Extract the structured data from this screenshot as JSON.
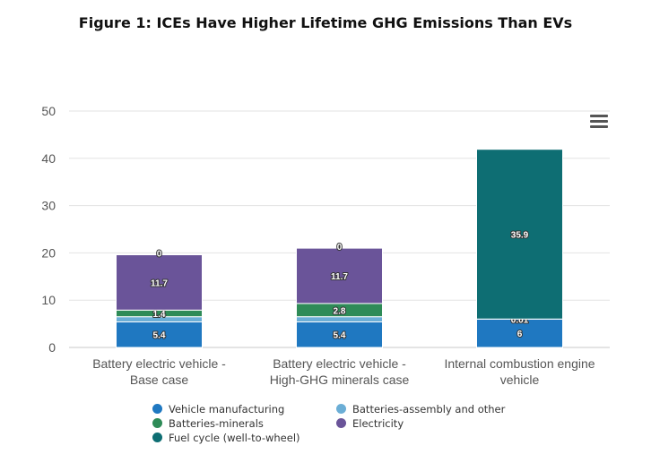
{
  "chart_data": {
    "type": "bar",
    "stacked": true,
    "title": "Figure 1: ICEs Have Higher Lifetime GHG Emissions Than EVs",
    "categories": [
      [
        "Battery electric vehicle -",
        "Base case"
      ],
      [
        "Battery electric vehicle -",
        "High-GHG minerals case"
      ],
      [
        "Internal combustion engine",
        "vehicle"
      ]
    ],
    "ylim": [
      0,
      50
    ],
    "yticks": [
      0,
      10,
      20,
      30,
      40,
      50
    ],
    "grid": true,
    "legend_position": "bottom",
    "series": [
      {
        "name": "Vehicle manufacturing",
        "color": "#1f78c1",
        "values": [
          5.4,
          5.4,
          6
        ],
        "labels": [
          "5.4",
          "5.4",
          "6"
        ]
      },
      {
        "name": "Batteries-assembly and other",
        "color": "#6baed6",
        "values": [
          1.1,
          1.1,
          0.01
        ],
        "labels": [
          "",
          "",
          "0.01"
        ]
      },
      {
        "name": "Batteries-minerals",
        "color": "#2e8b57",
        "values": [
          1.4,
          2.8,
          0
        ],
        "labels": [
          "1.4",
          "2.8",
          ""
        ]
      },
      {
        "name": "Electricity",
        "color": "#6a5499",
        "values": [
          11.7,
          11.7,
          0
        ],
        "labels": [
          "11.7",
          "11.7",
          ""
        ]
      },
      {
        "name": "Fuel cycle (well-to-wheel)",
        "color": "#0e6e73",
        "values": [
          0,
          0,
          35.9
        ],
        "labels": [
          "0",
          "0",
          "35.9"
        ]
      }
    ]
  },
  "menu_icon": "hamburger-menu-icon"
}
